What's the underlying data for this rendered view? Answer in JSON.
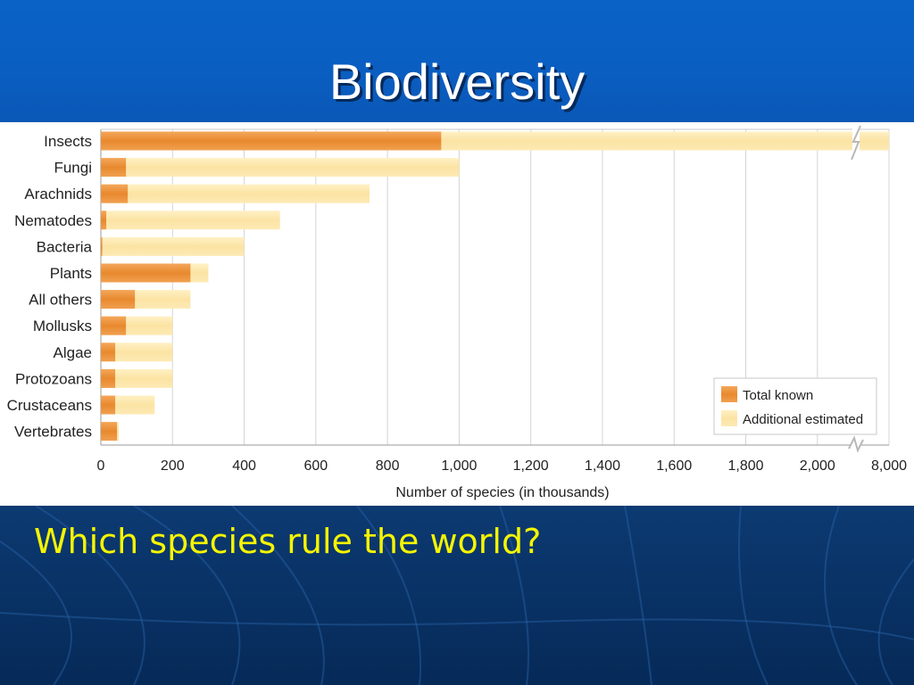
{
  "slide": {
    "title": "Biodiversity",
    "question": "Which species rule the world?"
  },
  "colors": {
    "known": "#e8892e",
    "estimated": "#fbe3a3",
    "grid": "#d4d4d4",
    "axis_text": "#222222"
  },
  "chart_data": {
    "type": "bar",
    "orientation": "horizontal",
    "stacked": true,
    "title": "",
    "xlabel": "Number of species (in thousands)",
    "ylabel": "",
    "categories": [
      "Insects",
      "Fungi",
      "Arachnids",
      "Nematodes",
      "Bacteria",
      "Plants",
      "All others",
      "Mollusks",
      "Algae",
      "Protozoans",
      "Crustaceans",
      "Vertebrates"
    ],
    "series": [
      {
        "name": "Total known",
        "values": [
          950,
          70,
          75,
          15,
          4,
          250,
          95,
          70,
          40,
          40,
          40,
          45
        ]
      },
      {
        "name": "Additional estimated",
        "values": [
          7050,
          930,
          675,
          485,
          396,
          50,
          155,
          130,
          160,
          160,
          110,
          5
        ]
      }
    ],
    "xticks": [
      "0",
      "200",
      "400",
      "600",
      "800",
      "1,000",
      "1,200",
      "1,400",
      "1,600",
      "1,800",
      "2,000",
      "8,000"
    ],
    "xlim": [
      0,
      2200
    ],
    "axis_break": {
      "from": 2100,
      "to": 8000
    },
    "grid": true,
    "legend_position": "bottom-right"
  }
}
